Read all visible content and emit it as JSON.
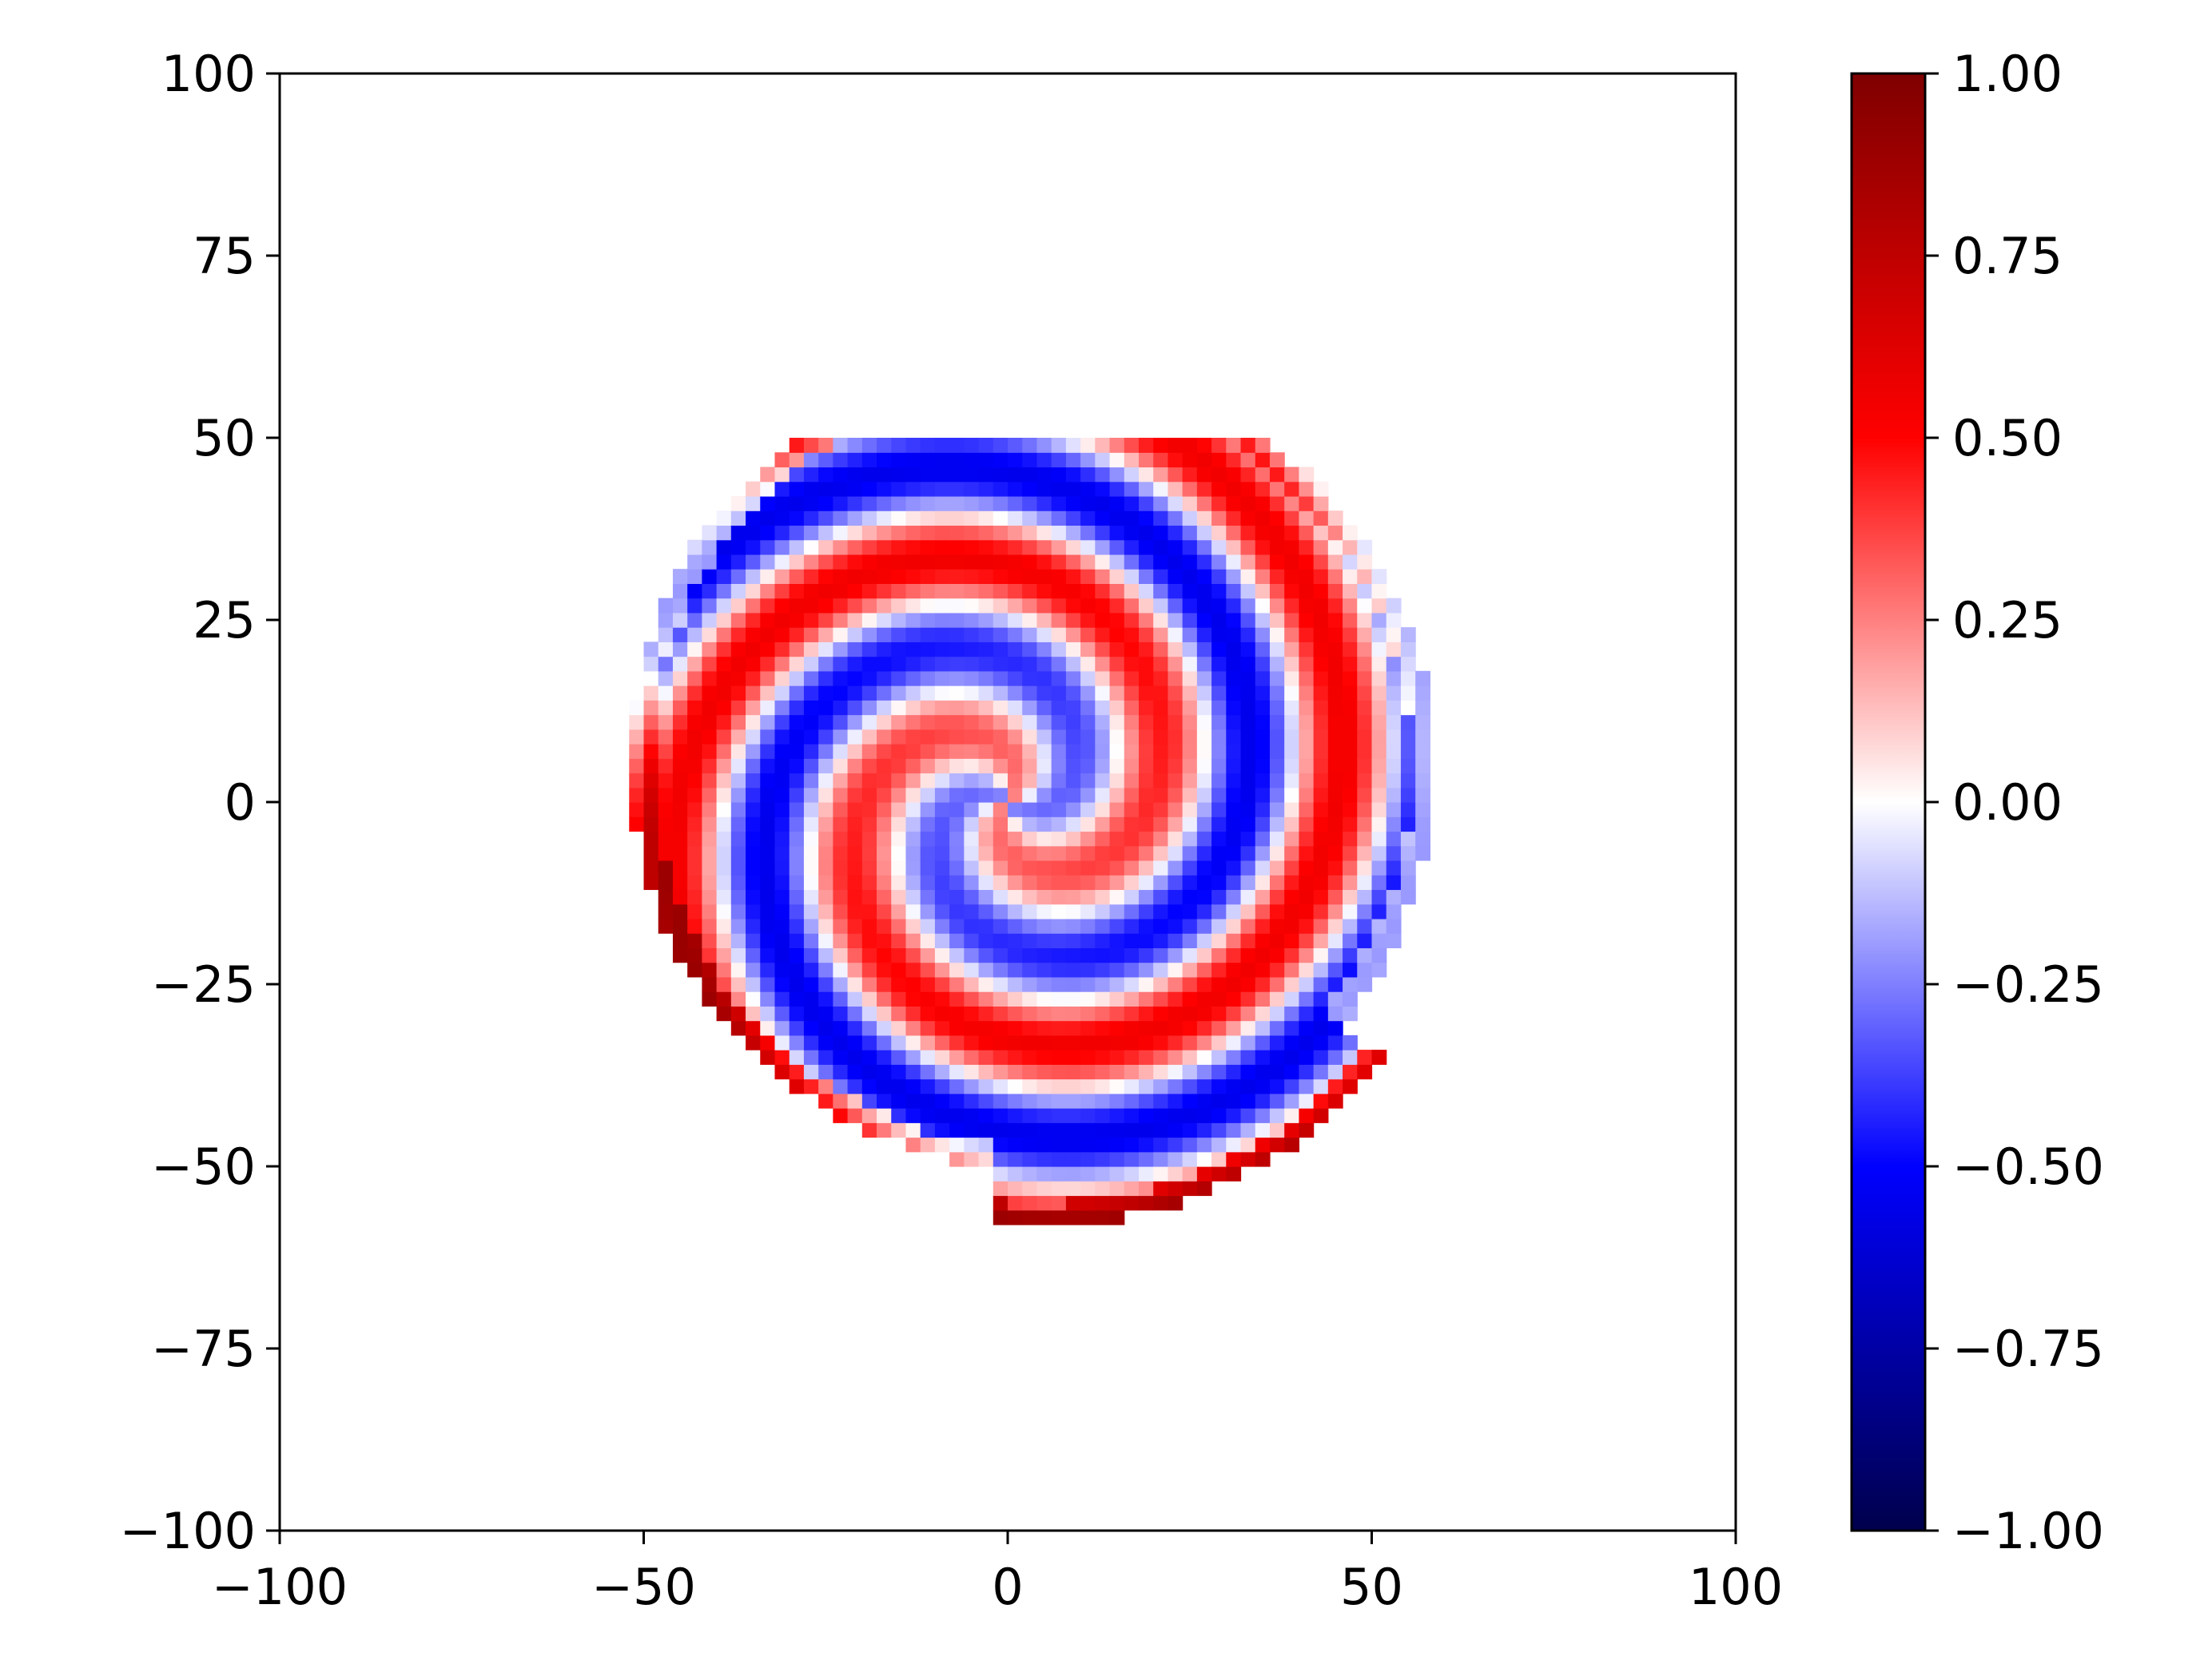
{
  "chart_data": {
    "type": "heatmap",
    "title": "",
    "xlabel": "",
    "ylabel": "",
    "xlim": [
      -100,
      100
    ],
    "ylim": [
      -100,
      100
    ],
    "x_ticks": [
      -100,
      -50,
      0,
      50,
      100
    ],
    "x_tick_labels": [
      "−100",
      "−50",
      "0",
      "50",
      "100"
    ],
    "y_ticks": [
      100,
      75,
      50,
      25,
      0,
      -25,
      -50,
      -75,
      -100
    ],
    "y_tick_labels": [
      "100",
      "75",
      "50",
      "25",
      "0",
      "−25",
      "−50",
      "−75",
      "−100"
    ],
    "grid": false,
    "colormap": "seismic",
    "colormap_stops": [
      {
        "value": -1.0,
        "color": "#00004c"
      },
      {
        "value": -0.5,
        "color": "#0000ff"
      },
      {
        "value": 0.0,
        "color": "#ffffff"
      },
      {
        "value": 0.5,
        "color": "#ff0000"
      },
      {
        "value": 1.0,
        "color": "#7f0000"
      }
    ],
    "colorbar": {
      "range": [
        -1.0,
        1.0
      ],
      "ticks": [
        1.0,
        0.75,
        0.5,
        0.25,
        0.0,
        -0.25,
        -0.5,
        -0.75,
        -1.0
      ],
      "tick_labels": [
        "1.00",
        "0.75",
        "0.50",
        "0.25",
        "0.00",
        "−0.25",
        "−0.50",
        "−0.75",
        "−1.00"
      ],
      "placement": "right"
    },
    "field": {
      "description_of_values": "spiral pattern of values in [-1, 1], nonzero only within a disk of radius ~55 centered near (0,0); red (positive) and blue (negative) arms wind outward",
      "cell_size": 2,
      "center": [
        0,
        0
      ],
      "outer_radius": 55,
      "arms": 2,
      "winding": 0.085
    }
  }
}
